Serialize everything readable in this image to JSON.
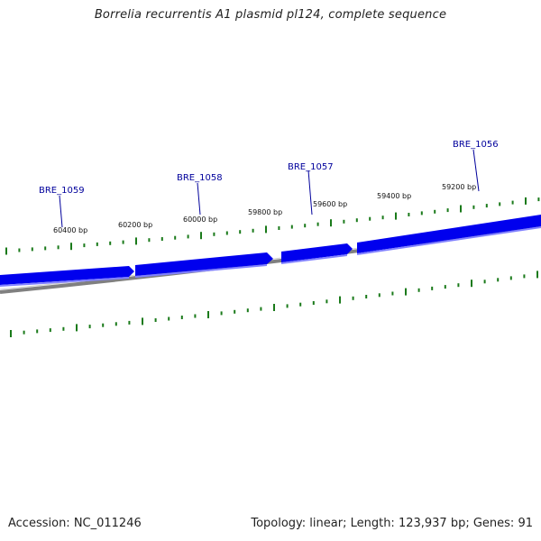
{
  "title": "Borrelia recurrentis A1 plasmid pl124, complete sequence",
  "footer": {
    "accession": "Accession: NC_011246",
    "summary": "Topology: linear; Length: 123,937 bp; Genes: 91"
  },
  "colors": {
    "gene": "#0000ee",
    "gene_shadow": "#8080ff",
    "backbone": "#808080",
    "ticks": "#1a7a1a",
    "gene_label": "#00009c"
  },
  "genes": [
    {
      "name": "BRE_1059"
    },
    {
      "name": "BRE_1058"
    },
    {
      "name": "BRE_1057"
    },
    {
      "name": "BRE_1056"
    }
  ],
  "position_labels": [
    "60400 bp",
    "60200 bp",
    "60000 bp",
    "59800 bp",
    "59600 bp",
    "59400 bp",
    "59200 bp"
  ]
}
